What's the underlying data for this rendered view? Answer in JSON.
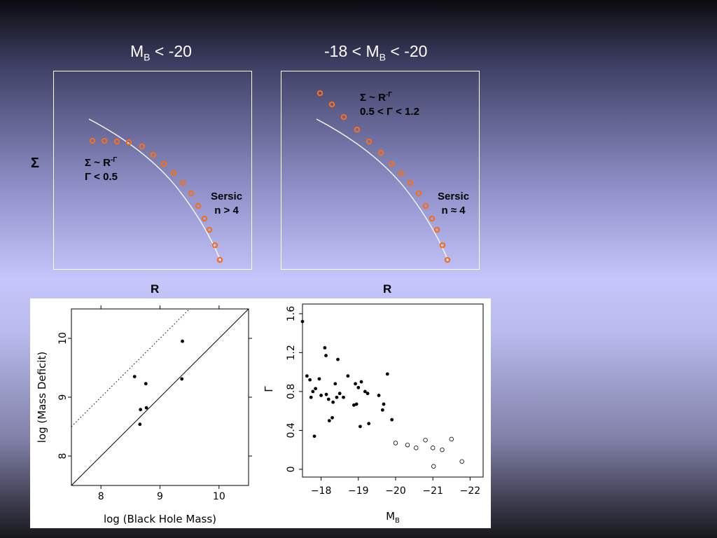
{
  "top_left": {
    "title_pre": "M",
    "title_sub": "B",
    "title_post": " < -20",
    "y_label": "Σ",
    "x_label": "R",
    "powerlaw_line1": "Σ ~ R",
    "powerlaw_exp": "-Γ",
    "powerlaw_line2": "Γ < 0.5",
    "sersic_line1": "Sersic",
    "sersic_line2": "n > 4"
  },
  "top_right": {
    "title_pre": "-18 < M",
    "title_sub": "B",
    "title_post": " < -20",
    "x_label": "R",
    "powerlaw_line1": "Σ ~ R",
    "powerlaw_exp": "-Γ",
    "powerlaw_line2": "0.5 < Γ < 1.2",
    "sersic_line1": "Sersic",
    "sersic_line2": "n ≈ 4"
  },
  "colors": {
    "profile_points": "#f07020",
    "sersic_curve": "#ffffff"
  },
  "chart_data": [
    {
      "type": "scatter",
      "title": "",
      "xlabel": "log (Black Hole Mass)",
      "ylabel": "log (Mass Deficit)",
      "xlim": [
        7.5,
        10.5
      ],
      "ylim": [
        7.5,
        10.5
      ],
      "xticks": [
        "8",
        "9",
        "10"
      ],
      "yticks": [
        "8",
        "9",
        "10"
      ],
      "points": [
        [
          8.57,
          9.35
        ],
        [
          8.67,
          8.79
        ],
        [
          8.66,
          8.54
        ],
        [
          8.77,
          8.82
        ],
        [
          8.76,
          9.23
        ],
        [
          9.37,
          9.31
        ],
        [
          9.38,
          9.95
        ]
      ],
      "lines": [
        {
          "style": "solid",
          "from": [
            7.5,
            7.5
          ],
          "to": [
            10.5,
            10.5
          ]
        },
        {
          "style": "dotted",
          "from": [
            7.5,
            8.5
          ],
          "to": [
            9.5,
            10.5
          ]
        }
      ]
    },
    {
      "type": "scatter",
      "title": "",
      "xlabel": "M",
      "xlabel_sub": "B",
      "ylabel": "Γ",
      "xlim": [
        -17.5,
        -22.35
      ],
      "ylim": [
        -0.08,
        1.7
      ],
      "xticks": [
        "−18",
        "−19",
        "−20",
        "−21",
        "−22"
      ],
      "yticks": [
        "0",
        "0.4",
        "0.8",
        "1.2",
        "1.6"
      ],
      "series": [
        {
          "marker": "filled",
          "points": [
            [
              -17.5,
              1.52
            ],
            [
              -17.62,
              0.96
            ],
            [
              -17.7,
              0.92
            ],
            [
              -17.73,
              0.74
            ],
            [
              -17.78,
              0.8
            ],
            [
              -17.82,
              0.34
            ],
            [
              -17.85,
              0.83
            ],
            [
              -17.95,
              0.93
            ],
            [
              -18.0,
              0.76
            ],
            [
              -18.1,
              1.25
            ],
            [
              -18.13,
              1.17
            ],
            [
              -18.14,
              0.77
            ],
            [
              -18.2,
              0.72
            ],
            [
              -18.22,
              0.5
            ],
            [
              -18.3,
              0.53
            ],
            [
              -18.32,
              0.69
            ],
            [
              -18.38,
              0.88
            ],
            [
              -18.42,
              0.74
            ],
            [
              -18.45,
              1.13
            ],
            [
              -18.5,
              0.78
            ],
            [
              -18.6,
              0.74
            ],
            [
              -18.72,
              0.96
            ],
            [
              -18.88,
              0.66
            ],
            [
              -18.92,
              0.88
            ],
            [
              -18.95,
              0.67
            ],
            [
              -19.0,
              0.84
            ],
            [
              -19.05,
              0.44
            ],
            [
              -19.08,
              0.9
            ],
            [
              -19.18,
              0.8
            ],
            [
              -19.25,
              0.78
            ],
            [
              -19.28,
              0.47
            ],
            [
              -19.55,
              0.76
            ],
            [
              -19.65,
              0.61
            ],
            [
              -19.68,
              0.67
            ],
            [
              -19.78,
              0.98
            ],
            [
              -19.9,
              0.51
            ]
          ]
        },
        {
          "marker": "open",
          "points": [
            [
              -20.0,
              0.27
            ],
            [
              -20.32,
              0.25
            ],
            [
              -20.55,
              0.22
            ],
            [
              -20.8,
              0.3
            ],
            [
              -21.0,
              0.22
            ],
            [
              -21.02,
              0.03
            ],
            [
              -21.25,
              0.2
            ],
            [
              -21.5,
              0.31
            ],
            [
              -21.78,
              0.08
            ]
          ]
        }
      ]
    }
  ]
}
